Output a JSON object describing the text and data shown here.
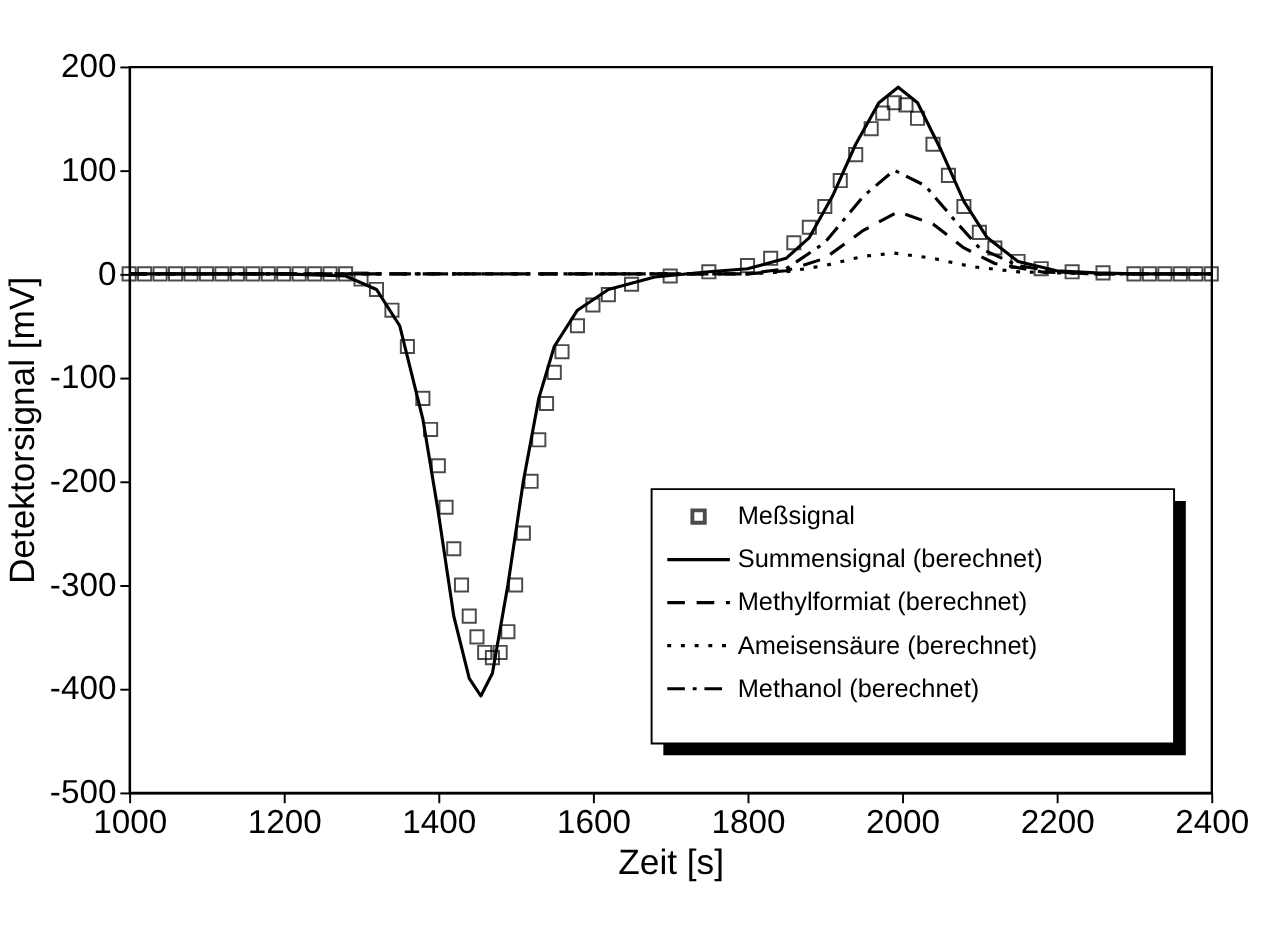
{
  "chart_data": {
    "type": "line",
    "xlabel": "Zeit [s]",
    "ylabel": "Detektorsignal [mV]",
    "xlim": [
      1000,
      2400
    ],
    "xticks": [
      1000,
      1200,
      1400,
      1600,
      1800,
      2000,
      2200,
      2400
    ],
    "ylim": [
      -500,
      200
    ],
    "yticks": [
      -500,
      -400,
      -300,
      -200,
      -100,
      0,
      100,
      200
    ],
    "grid": false,
    "legend": "bottom right",
    "series": [
      {
        "name": "Meßsignal",
        "type": "scatter",
        "marker": "square",
        "color": "#000000",
        "x": [
          1000,
          1020,
          1040,
          1060,
          1080,
          1100,
          1120,
          1140,
          1160,
          1180,
          1200,
          1220,
          1240,
          1260,
          1280,
          1300,
          1320,
          1340,
          1360,
          1380,
          1390,
          1400,
          1410,
          1420,
          1430,
          1440,
          1450,
          1460,
          1470,
          1480,
          1490,
          1500,
          1510,
          1520,
          1530,
          1540,
          1550,
          1560,
          1580,
          1600,
          1620,
          1650,
          1700,
          1750,
          1800,
          1830,
          1860,
          1880,
          1900,
          1920,
          1940,
          1960,
          1975,
          1990,
          2005,
          2020,
          2040,
          2060,
          2080,
          2100,
          2120,
          2150,
          2180,
          2220,
          2260,
          2300,
          2320,
          2340,
          2360,
          2380,
          2400
        ],
        "values": [
          0,
          0,
          0,
          0,
          0,
          0,
          0,
          0,
          0,
          0,
          0,
          0,
          0,
          0,
          0,
          -5,
          -15,
          -35,
          -70,
          -120,
          -150,
          -185,
          -225,
          -265,
          -300,
          -330,
          -350,
          -365,
          -370,
          -365,
          -345,
          -300,
          -250,
          -200,
          -160,
          -125,
          -95,
          -75,
          -50,
          -30,
          -20,
          -10,
          -2,
          2,
          8,
          15,
          30,
          45,
          65,
          90,
          115,
          140,
          155,
          165,
          163,
          150,
          125,
          95,
          65,
          40,
          25,
          12,
          5,
          2,
          1,
          0,
          0,
          0,
          0,
          0,
          0
        ]
      },
      {
        "name": "Summensignal (berechnet)",
        "line_style": "solid",
        "color": "#000000",
        "x": [
          1000,
          1200,
          1280,
          1320,
          1350,
          1380,
          1400,
          1420,
          1440,
          1455,
          1470,
          1490,
          1510,
          1530,
          1550,
          1580,
          1620,
          1680,
          1750,
          1800,
          1850,
          1880,
          1910,
          1940,
          1970,
          1995,
          2020,
          2050,
          2080,
          2110,
          2150,
          2200,
          2250,
          2300,
          2400
        ],
        "values": [
          0,
          0,
          -2,
          -15,
          -50,
          -140,
          -230,
          -330,
          -390,
          -407,
          -385,
          -300,
          -200,
          -120,
          -70,
          -35,
          -15,
          -3,
          2,
          5,
          15,
          35,
          75,
          125,
          165,
          180,
          165,
          120,
          70,
          35,
          12,
          3,
          1,
          0,
          0
        ]
      },
      {
        "name": "Methylformiat (berechnet)",
        "line_style": "dashed",
        "color": "#000000",
        "x": [
          1000,
          1800,
          1850,
          1900,
          1950,
          1995,
          2040,
          2080,
          2120,
          2180,
          2250,
          2400
        ],
        "values": [
          0,
          0,
          3,
          15,
          42,
          60,
          48,
          25,
          10,
          2,
          0,
          0
        ]
      },
      {
        "name": "Ameisensäure (berechnet)",
        "line_style": "dotted",
        "color": "#000000",
        "x": [
          1000,
          1800,
          1850,
          1900,
          1950,
          1990,
          2040,
          2090,
          2150,
          2250,
          2400
        ],
        "values": [
          0,
          0,
          2,
          8,
          17,
          20,
          15,
          7,
          2,
          0,
          0
        ]
      },
      {
        "name": "Methanol (berechnet)",
        "line_style": "dashdot",
        "color": "#000000",
        "x": [
          1000,
          1800,
          1850,
          1900,
          1950,
          1990,
          2030,
          2070,
          2100,
          2150,
          2200,
          2250,
          2400
        ],
        "values": [
          0,
          0,
          5,
          30,
          75,
          100,
          85,
          50,
          25,
          8,
          2,
          0,
          0
        ]
      }
    ]
  }
}
